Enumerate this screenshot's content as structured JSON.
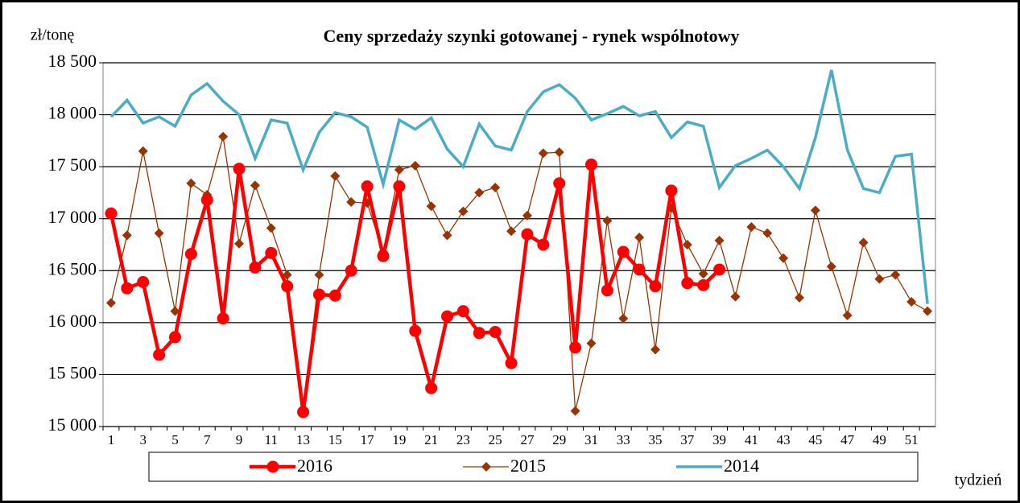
{
  "chart_data": {
    "type": "line",
    "title": "Ceny sprzedaży szynki gotowanej - rynek wspólnotowy",
    "y_label": "zł/tonę",
    "x_label": "tydzień",
    "categories": [
      "1",
      null,
      "3",
      null,
      "5",
      null,
      "7",
      null,
      "9",
      null,
      "11",
      null,
      "13",
      null,
      "15",
      null,
      "17",
      null,
      "19",
      null,
      "21",
      null,
      "23",
      null,
      "25",
      null,
      "27",
      null,
      "29",
      null,
      "31",
      null,
      "33",
      null,
      "35",
      null,
      "37",
      null,
      "39",
      null,
      "41",
      null,
      "43",
      null,
      "45",
      null,
      "47",
      null,
      "49",
      null,
      "51",
      null
    ],
    "ylim": [
      15000,
      18500
    ],
    "yticks": [
      {
        "value": 15000,
        "label": "15 000"
      },
      {
        "value": 15500,
        "label": "15 500"
      },
      {
        "value": 16000,
        "label": "16 000"
      },
      {
        "value": 16500,
        "label": "16 500"
      },
      {
        "value": 17000,
        "label": "17 000"
      },
      {
        "value": 17500,
        "label": "17 500"
      },
      {
        "value": 18000,
        "label": "18 000"
      },
      {
        "value": 18500,
        "label": "18 500"
      }
    ],
    "grid": true,
    "series": [
      {
        "name": "2016",
        "color": "#ff0000",
        "marker": "circle",
        "values": [
          17050,
          16330,
          16390,
          15690,
          15860,
          16660,
          17180,
          16040,
          17480,
          16530,
          16670,
          16350,
          15140,
          16270,
          16260,
          16500,
          17310,
          16640,
          17310,
          15920,
          15370,
          16060,
          16110,
          15900,
          15910,
          15610,
          16850,
          16750,
          17340,
          15760,
          17520,
          16310,
          16680,
          16510,
          16350,
          17270,
          16380,
          16360,
          16510,
          null,
          null,
          null,
          null,
          null,
          null,
          null,
          null,
          null,
          null,
          null,
          null,
          null
        ]
      },
      {
        "name": "2015",
        "color": "#993300",
        "marker": "diamond",
        "values": [
          16190,
          16840,
          17650,
          16860,
          16110,
          17340,
          17230,
          17790,
          16760,
          17320,
          16910,
          16460,
          15150,
          16460,
          17410,
          17160,
          17150,
          16680,
          17470,
          17510,
          17120,
          16840,
          17070,
          17250,
          17300,
          16880,
          17030,
          17630,
          17640,
          15150,
          15800,
          16980,
          16040,
          16820,
          15740,
          17100,
          16750,
          16470,
          16790,
          16250,
          16920,
          16860,
          16620,
          16240,
          17080,
          16540,
          16070,
          16770,
          16420,
          16460,
          16200,
          16110
        ]
      },
      {
        "name": "2014",
        "color": "#4bacc6",
        "marker": "none",
        "values": [
          17980,
          18140,
          17920,
          17980,
          17890,
          18190,
          18300,
          18130,
          18000,
          17580,
          17950,
          17920,
          17470,
          17830,
          18020,
          17980,
          17880,
          17330,
          17950,
          17860,
          17970,
          17670,
          17500,
          17910,
          17700,
          17660,
          18030,
          18220,
          18290,
          18160,
          17950,
          18010,
          18080,
          17990,
          18030,
          17780,
          17930,
          17890,
          17300,
          17510,
          17580,
          17660,
          17500,
          17290,
          17780,
          18430,
          17660,
          17290,
          17250,
          17600,
          17620,
          16180
        ]
      }
    ]
  }
}
